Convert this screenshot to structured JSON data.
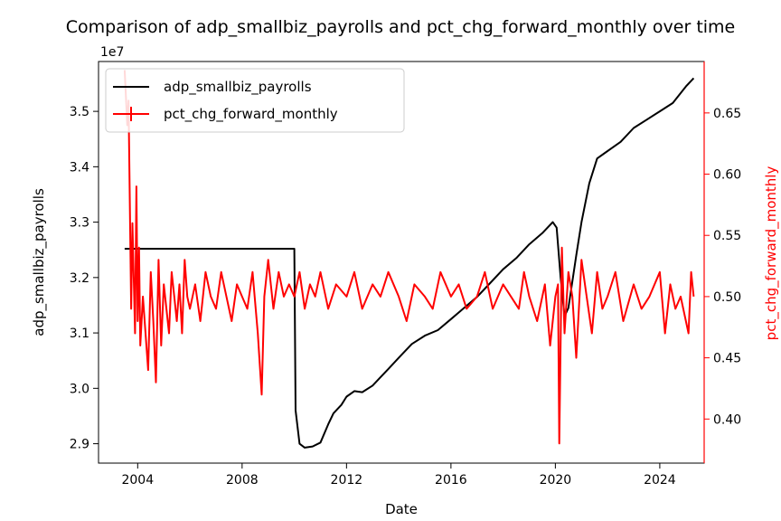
{
  "chart_data": {
    "type": "line",
    "title": "Comparison of adp_smallbiz_payrolls and pct_chg_forward_monthly over time",
    "xlabel": "Date",
    "ylabel_left": "adp_smallbiz_payrolls",
    "ylabel_right": "pct_chg_forward_monthly",
    "left_offset_label": "1e7",
    "xlim": [
      2002.5,
      2025.7
    ],
    "ylim_left": [
      28.65,
      35.9
    ],
    "ylim_right": [
      0.364,
      0.692
    ],
    "x_ticks": [
      2004,
      2008,
      2012,
      2016,
      2020,
      2024
    ],
    "x_tick_labels": [
      "2004",
      "2008",
      "2012",
      "2016",
      "2020",
      "2024"
    ],
    "y_left_ticks": [
      29.0,
      30.0,
      31.0,
      32.0,
      33.0,
      34.0,
      35.0
    ],
    "y_left_tick_labels": [
      "2.9",
      "3.0",
      "3.1",
      "3.2",
      "3.3",
      "3.4",
      "3.5"
    ],
    "y_right_ticks": [
      0.4,
      0.45,
      0.5,
      0.55,
      0.6,
      0.65
    ],
    "y_right_tick_labels": [
      "0.40",
      "0.45",
      "0.50",
      "0.55",
      "0.60",
      "0.65"
    ],
    "grid": false,
    "legend_position": "upper-left",
    "colors": {
      "left_series": "#000000",
      "right_series": "#ff0000",
      "right_axis": "#ff0000"
    },
    "series": [
      {
        "name": "adp_smallbiz_payrolls",
        "axis": "left",
        "unit_note": "values in 1e6 (axis scale 1e7)",
        "x": [
          2003.5,
          2004,
          2006,
          2008,
          2009.5,
          2010.0,
          2010.05,
          2010.2,
          2010.4,
          2010.7,
          2011.0,
          2011.3,
          2011.5,
          2011.8,
          2012.0,
          2012.3,
          2012.6,
          2013.0,
          2013.3,
          2013.6,
          2014.0,
          2014.5,
          2015.0,
          2015.5,
          2016.0,
          2016.5,
          2017.0,
          2017.5,
          2018.0,
          2018.5,
          2019.0,
          2019.5,
          2019.9,
          2020.05,
          2020.2,
          2020.35,
          2020.5,
          2020.8,
          2021.0,
          2021.3,
          2021.6,
          2021.9,
          2022.2,
          2022.5,
          2023.0,
          2023.5,
          2024.0,
          2024.5,
          2025.0,
          2025.3
        ],
        "values": [
          32.52,
          32.52,
          32.52,
          32.52,
          32.52,
          32.52,
          29.6,
          29.0,
          28.93,
          28.95,
          29.02,
          29.35,
          29.55,
          29.7,
          29.85,
          29.95,
          29.93,
          30.05,
          30.2,
          30.35,
          30.55,
          30.8,
          30.95,
          31.05,
          31.25,
          31.45,
          31.65,
          31.9,
          32.15,
          32.35,
          32.6,
          32.8,
          33.0,
          32.9,
          32.0,
          31.3,
          31.45,
          32.4,
          33.0,
          33.7,
          34.15,
          34.25,
          34.35,
          34.45,
          34.7,
          34.85,
          35.0,
          35.15,
          35.45,
          35.6
        ]
      },
      {
        "name": "pct_chg_forward_monthly",
        "axis": "right",
        "x": [
          2003.5,
          2003.6,
          2003.65,
          2003.75,
          2003.8,
          2003.9,
          2003.95,
          2004.0,
          2004.05,
          2004.1,
          2004.2,
          2004.3,
          2004.4,
          2004.5,
          2004.6,
          2004.7,
          2004.8,
          2004.9,
          2005.0,
          2005.1,
          2005.2,
          2005.3,
          2005.4,
          2005.5,
          2005.6,
          2005.7,
          2005.8,
          2005.9,
          2006.0,
          2006.2,
          2006.4,
          2006.6,
          2006.8,
          2007.0,
          2007.2,
          2007.4,
          2007.6,
          2007.8,
          2008.0,
          2008.2,
          2008.4,
          2008.6,
          2008.75,
          2008.85,
          2009.0,
          2009.2,
          2009.4,
          2009.6,
          2009.8,
          2010.0,
          2010.2,
          2010.4,
          2010.6,
          2010.8,
          2011.0,
          2011.3,
          2011.6,
          2012.0,
          2012.3,
          2012.6,
          2013.0,
          2013.3,
          2013.6,
          2014.0,
          2014.3,
          2014.6,
          2015.0,
          2015.3,
          2015.6,
          2016.0,
          2016.3,
          2016.6,
          2017.0,
          2017.3,
          2017.6,
          2018.0,
          2018.3,
          2018.6,
          2018.8,
          2019.0,
          2019.3,
          2019.6,
          2019.8,
          2020.0,
          2020.1,
          2020.15,
          2020.25,
          2020.35,
          2020.5,
          2020.65,
          2020.8,
          2021.0,
          2021.2,
          2021.4,
          2021.6,
          2021.8,
          2022.0,
          2022.3,
          2022.6,
          2023.0,
          2023.3,
          2023.6,
          2024.0,
          2024.2,
          2024.4,
          2024.6,
          2024.8,
          2025.0,
          2025.1,
          2025.2,
          2025.3
        ],
        "values": [
          0.685,
          0.64,
          0.66,
          0.49,
          0.56,
          0.47,
          0.59,
          0.48,
          0.54,
          0.46,
          0.5,
          0.47,
          0.44,
          0.52,
          0.48,
          0.43,
          0.53,
          0.46,
          0.51,
          0.49,
          0.47,
          0.52,
          0.5,
          0.48,
          0.51,
          0.47,
          0.53,
          0.5,
          0.49,
          0.51,
          0.48,
          0.52,
          0.5,
          0.49,
          0.52,
          0.5,
          0.48,
          0.51,
          0.5,
          0.49,
          0.52,
          0.47,
          0.42,
          0.5,
          0.53,
          0.49,
          0.52,
          0.5,
          0.51,
          0.5,
          0.52,
          0.49,
          0.51,
          0.5,
          0.52,
          0.49,
          0.51,
          0.5,
          0.52,
          0.49,
          0.51,
          0.5,
          0.52,
          0.5,
          0.48,
          0.51,
          0.5,
          0.49,
          0.52,
          0.5,
          0.51,
          0.49,
          0.5,
          0.52,
          0.49,
          0.51,
          0.5,
          0.49,
          0.52,
          0.5,
          0.48,
          0.51,
          0.46,
          0.5,
          0.51,
          0.38,
          0.54,
          0.47,
          0.52,
          0.5,
          0.45,
          0.53,
          0.5,
          0.47,
          0.52,
          0.49,
          0.5,
          0.52,
          0.48,
          0.51,
          0.49,
          0.5,
          0.52,
          0.47,
          0.51,
          0.49,
          0.5,
          0.48,
          0.47,
          0.52,
          0.5
        ]
      }
    ]
  }
}
